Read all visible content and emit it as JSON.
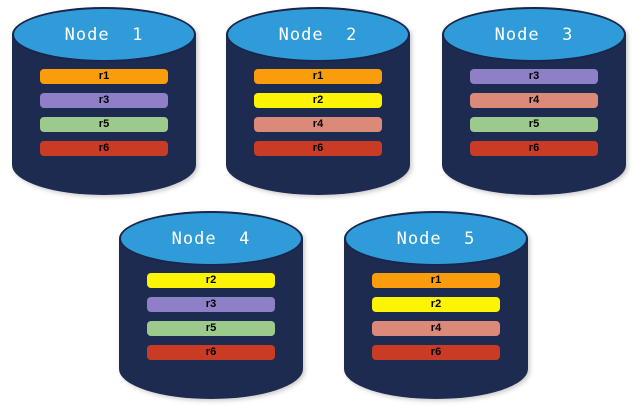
{
  "diagram": {
    "background": "#ffffff"
  },
  "colors": {
    "cylinder_body": "#1E2B50",
    "cylinder_top": "#2F9CD9",
    "cylinder_outline": "#19254A"
  },
  "replica_colors": {
    "r1": "#F99D0D",
    "r2": "#FCF403",
    "r3": "#8F7FC7",
    "r4": "#DB8979",
    "r5": "#9CC98C",
    "r6": "#C93B24"
  },
  "nodes": [
    {
      "label": "Node  1",
      "replicas": [
        "r1",
        "r3",
        "r5",
        "r6"
      ]
    },
    {
      "label": "Node  2",
      "replicas": [
        "r1",
        "r2",
        "r4",
        "r6"
      ]
    },
    {
      "label": "Node  3",
      "replicas": [
        "r3",
        "r4",
        "r5",
        "r6"
      ]
    },
    {
      "label": "Node  4",
      "replicas": [
        "r2",
        "r3",
        "r5",
        "r6"
      ]
    },
    {
      "label": "Node  5",
      "replicas": [
        "r1",
        "r2",
        "r4",
        "r6"
      ]
    }
  ]
}
